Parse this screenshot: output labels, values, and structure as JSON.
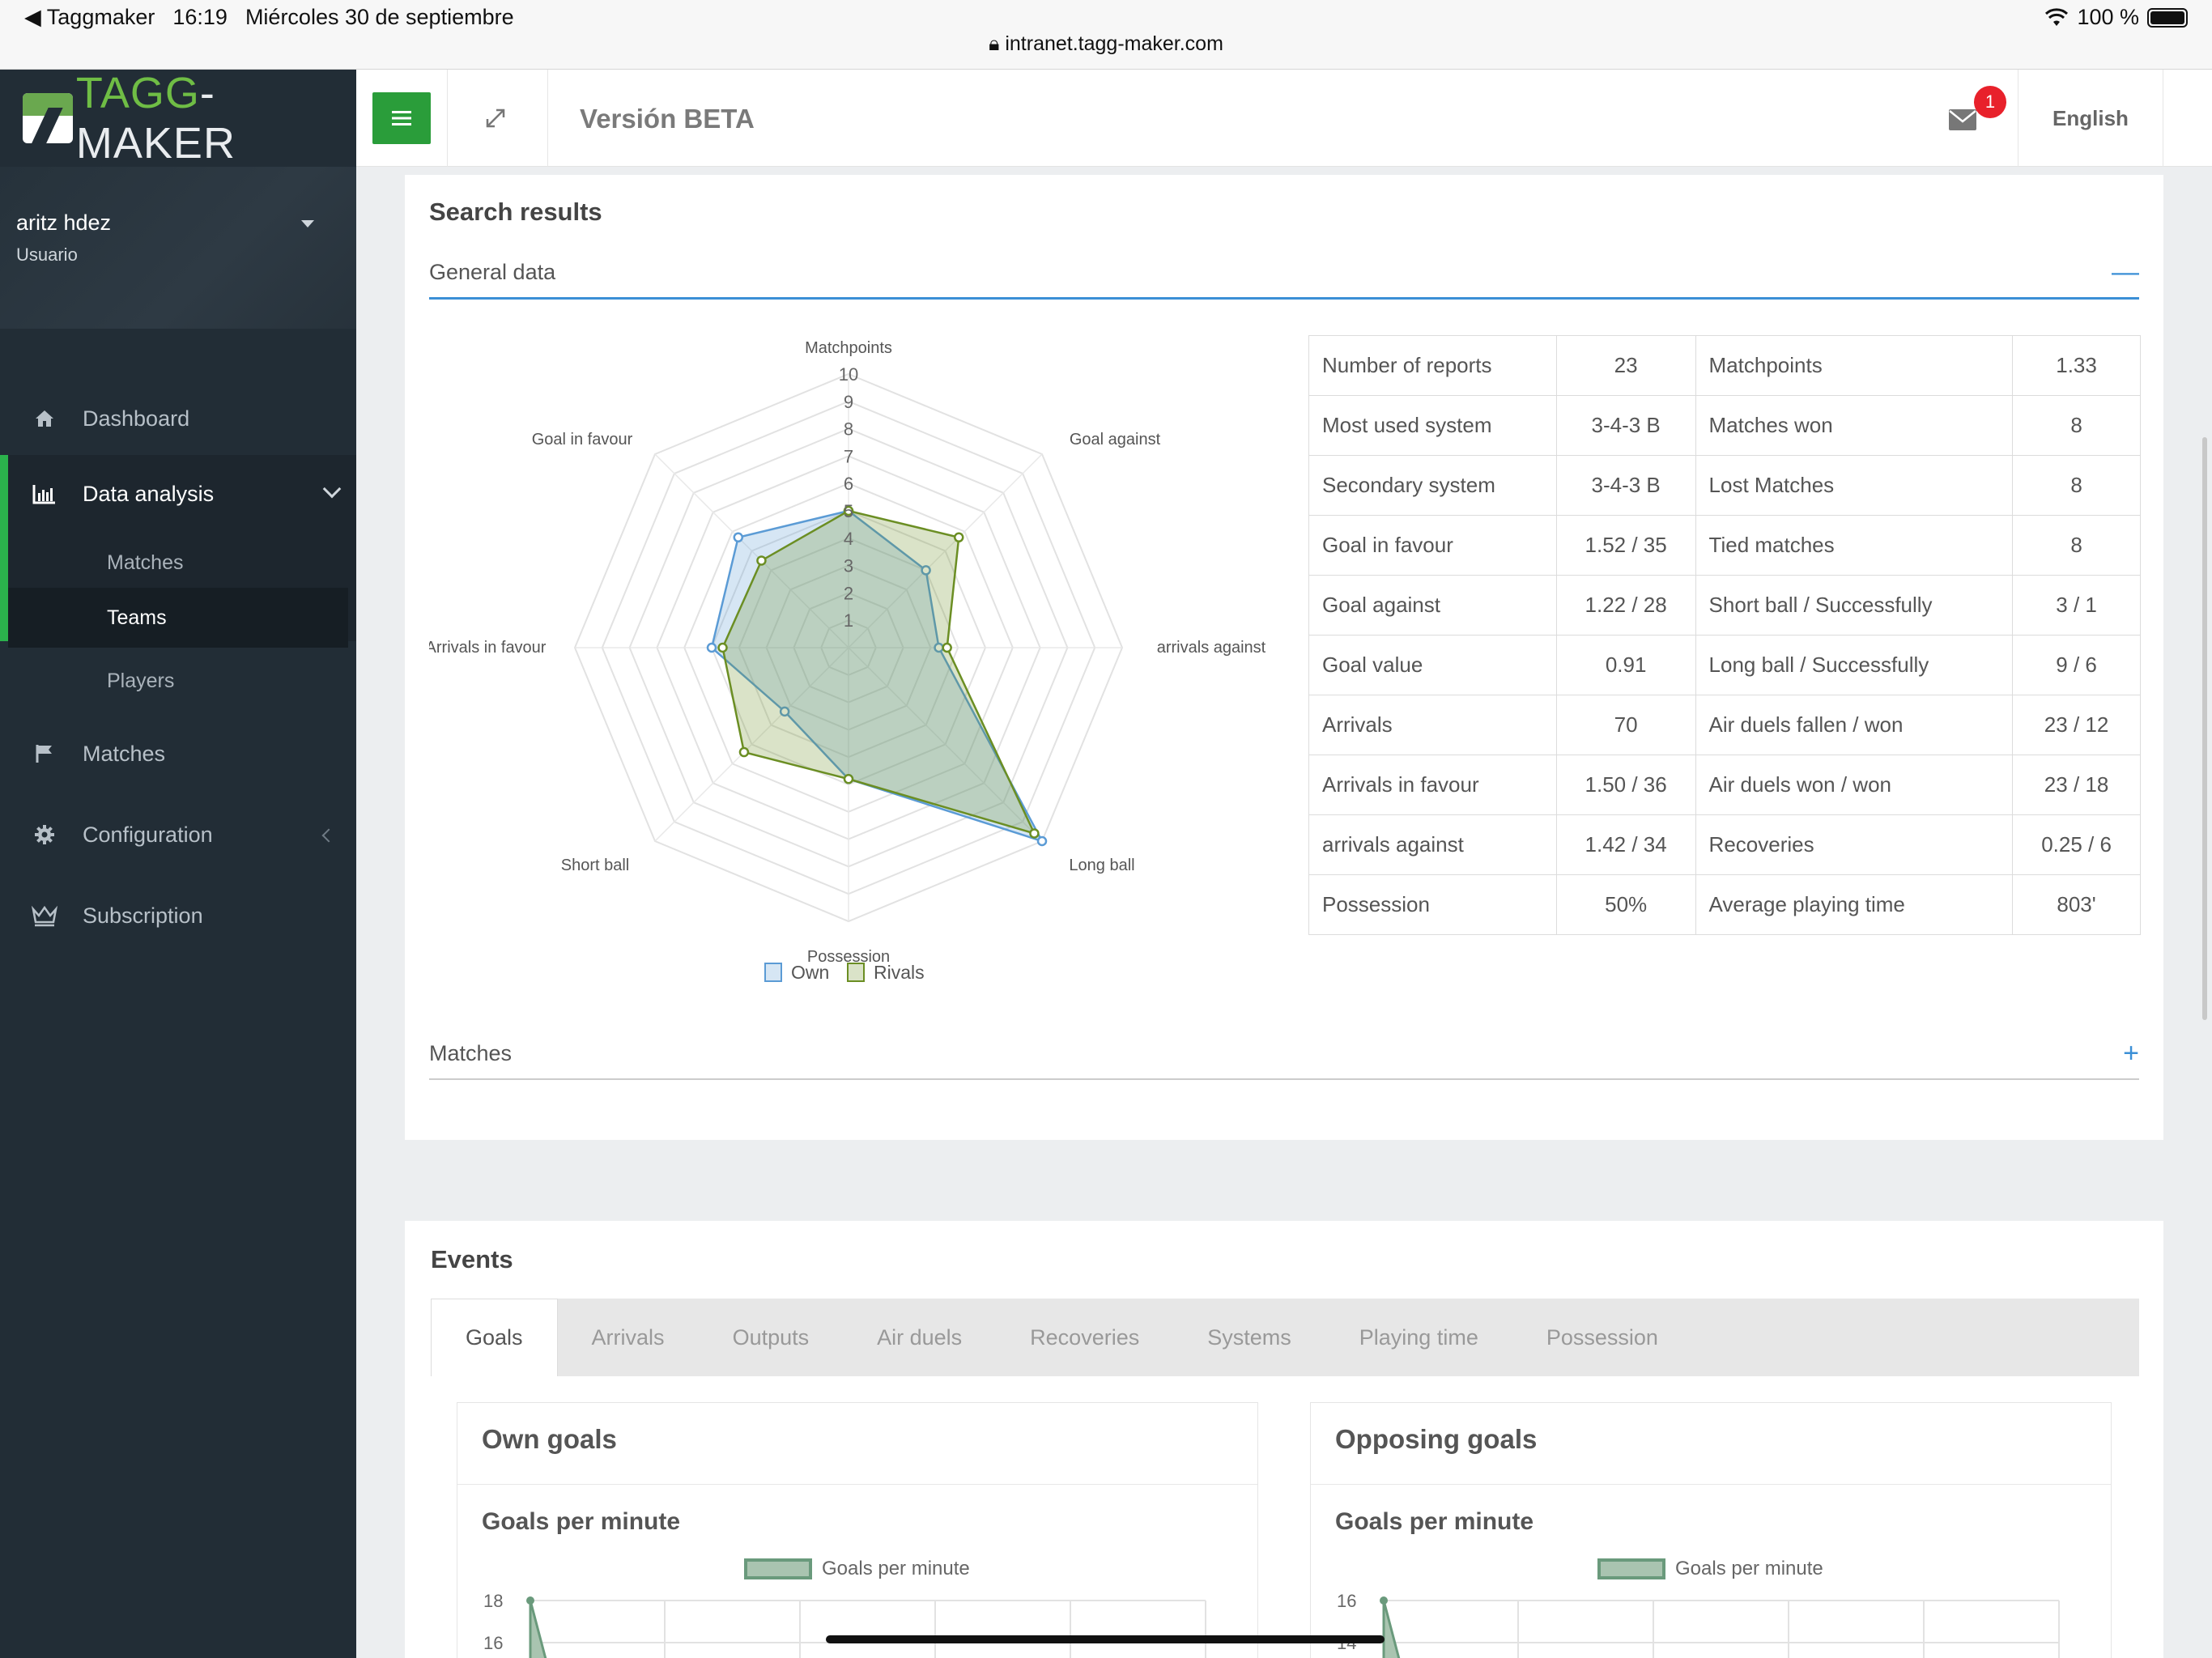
{
  "status_bar": {
    "back_app": "Taggmaker",
    "time": "16:19",
    "date": "Miércoles 30 de septiembre",
    "battery": "100 %",
    "url": "intranet.tagg-maker.com"
  },
  "sidebar": {
    "logo_part1": "TAGG",
    "logo_part2": "-MAKER",
    "user": {
      "name": "aritz hdez",
      "role": "Usuario"
    },
    "items": [
      {
        "label": "Dashboard",
        "icon": "home-icon"
      },
      {
        "label": "Data analysis",
        "icon": "bar-chart-icon"
      },
      {
        "label": "Matches",
        "icon": "flag-icon"
      },
      {
        "label": "Configuration",
        "icon": "gear-icon"
      },
      {
        "label": "Subscription",
        "icon": "crown-icon"
      }
    ],
    "subitems": [
      "Matches",
      "Teams",
      "Players"
    ]
  },
  "topbar": {
    "version": "Versión BETA",
    "notifications": "1",
    "language": "English"
  },
  "results": {
    "title": "Search results",
    "general_data_label": "General data",
    "general_toggle": "—",
    "matches_label": "Matches",
    "matches_toggle": "+",
    "table": [
      [
        "Number of reports",
        "23",
        "Matchpoints",
        "1.33"
      ],
      [
        "Most used system",
        "3-4-3 B",
        "Matches won",
        "8"
      ],
      [
        "Secondary system",
        "3-4-3 B",
        "Lost Matches",
        "8"
      ],
      [
        "Goal in favour",
        "1.52 / 35",
        "Tied matches",
        "8"
      ],
      [
        "Goal against",
        "1.22 / 28",
        "Short ball / Successfully",
        "3 / 1"
      ],
      [
        "Goal value",
        "0.91",
        "Long ball / Successfully",
        "9 / 6"
      ],
      [
        "Arrivals",
        "70",
        "Air duels fallen / won",
        "23 / 12"
      ],
      [
        "Arrivals in favour",
        "1.50 / 36",
        "Air duels won / won",
        "23 / 18"
      ],
      [
        "arrivals against",
        "1.42 / 34",
        "Recoveries",
        "0.25 / 6"
      ],
      [
        "Possession",
        "50%",
        "Average playing time",
        "803'"
      ]
    ]
  },
  "chart_data": [
    {
      "type": "radar",
      "axes": [
        "Matchpoints",
        "Goal against",
        "arrivals against",
        "Long ball",
        "Possession",
        "Short ball",
        "Arrivals in favour",
        "Goal in favour"
      ],
      "rlim": [
        0,
        10
      ],
      "ticks": [
        "1",
        "2",
        "3",
        "4",
        "5",
        "6",
        "7",
        "8",
        "9",
        "10"
      ],
      "series": [
        {
          "name": "Own",
          "color": "#5b9bd5",
          "values": [
            5,
            4,
            3.3,
            10,
            4.8,
            3.3,
            5,
            5.7
          ]
        },
        {
          "name": "Rivals",
          "color": "#6b8e23",
          "values": [
            5,
            5.7,
            3.6,
            9.6,
            4.8,
            5.4,
            4.6,
            4.5
          ]
        }
      ]
    },
    {
      "type": "area",
      "title": "Goals per minute",
      "series": [
        {
          "name": "Goals per minute",
          "color": "#6a9a7c"
        }
      ],
      "y_ticks_visible": [
        "18",
        "16"
      ]
    },
    {
      "type": "area",
      "title": "Goals per minute",
      "series": [
        {
          "name": "Goals per minute",
          "color": "#6a9a7c"
        }
      ],
      "y_ticks_visible": [
        "16",
        "14"
      ]
    }
  ],
  "events": {
    "title": "Events",
    "tabs": [
      "Goals",
      "Arrivals",
      "Outputs",
      "Air duels",
      "Recoveries",
      "Systems",
      "Playing time",
      "Possession"
    ],
    "own_title": "Own goals",
    "opp_title": "Opposing goals",
    "chart_title": "Goals per minute",
    "legend": "Goals per minute",
    "own_y_ticks": [
      "18",
      "16"
    ],
    "opp_y_ticks": [
      "16",
      "14"
    ]
  }
}
